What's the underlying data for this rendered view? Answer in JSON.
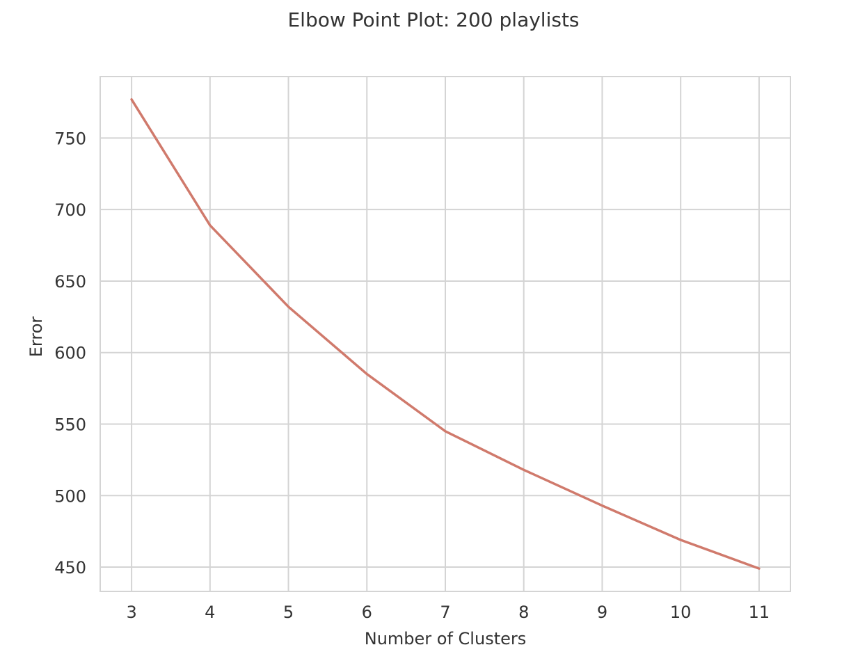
{
  "chart_data": {
    "type": "line",
    "title": "Elbow Point Plot: 200 playlists",
    "xlabel": "Number of Clusters",
    "ylabel": "Error",
    "x": [
      3,
      4,
      5,
      6,
      7,
      8,
      9,
      10,
      11
    ],
    "series": [
      {
        "values": [
          777,
          689,
          632,
          585,
          545,
          518,
          493,
          469,
          449
        ]
      }
    ],
    "xlim": [
      2.6,
      11.4
    ],
    "ylim": [
      433,
      793
    ],
    "xticks": [
      "3",
      "4",
      "5",
      "6",
      "7",
      "8",
      "9",
      "10",
      "11"
    ],
    "yticks": [
      "450",
      "500",
      "550",
      "600",
      "650",
      "700",
      "750"
    ],
    "grid": true,
    "legend": "none",
    "line_color": "#d07a6c"
  }
}
